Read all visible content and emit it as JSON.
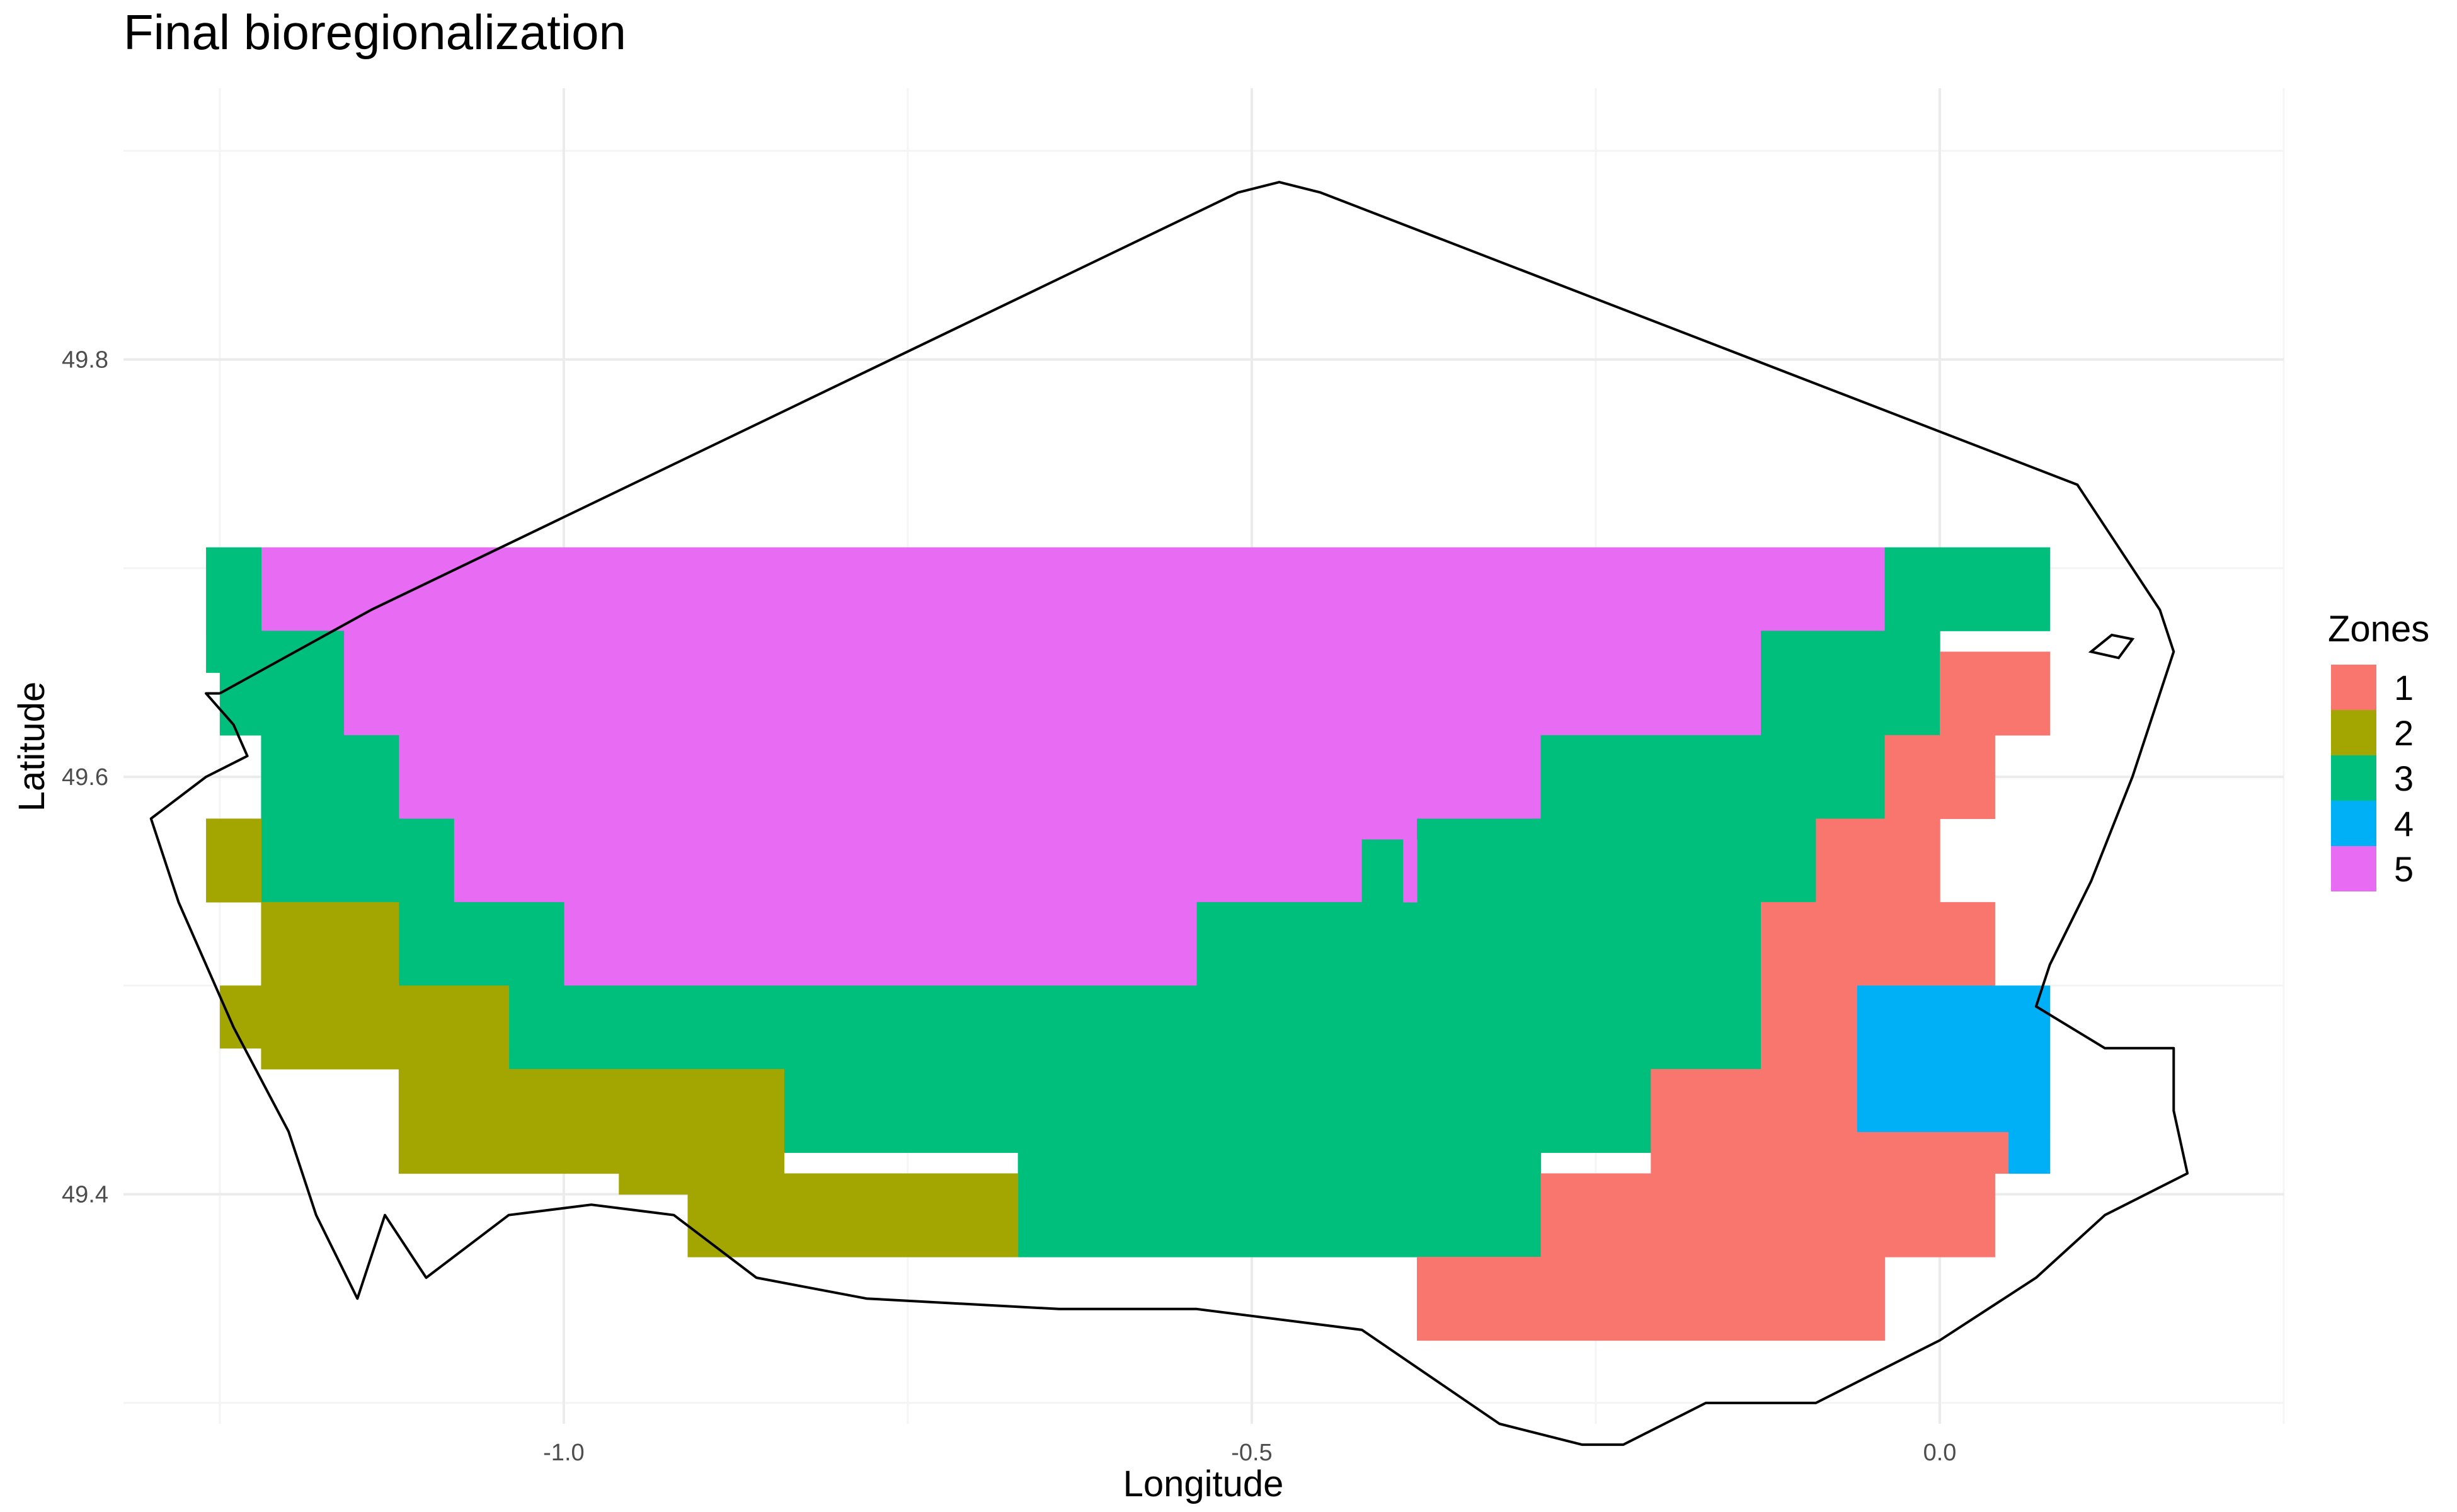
{
  "chart_data": {
    "type": "heatmap",
    "title": "Final bioregionalization",
    "xlabel": "Longitude",
    "ylabel": "Latitude",
    "xlim": [
      -1.32,
      0.25
    ],
    "ylim": [
      49.29,
      49.93
    ],
    "x_ticks": [
      -1.0,
      -0.5,
      0.0
    ],
    "x_tick_labels": [
      "-1.0",
      "-0.5",
      "0.0"
    ],
    "y_ticks": [
      49.4,
      49.6,
      49.8
    ],
    "y_tick_labels": [
      "49.4",
      "49.6",
      "49.8"
    ],
    "grid": true,
    "legend_position": "right",
    "legend": {
      "title": "Zones",
      "entries": [
        {
          "label": "1",
          "color": "#F8766D"
        },
        {
          "label": "2",
          "color": "#A3A500"
        },
        {
          "label": "3",
          "color": "#00BF7D"
        },
        {
          "label": "4",
          "color": "#00B0F6"
        },
        {
          "label": "5",
          "color": "#E76BF3"
        }
      ]
    },
    "cells": [
      {
        "zone": 5,
        "x0": -1.22,
        "x1": -0.04,
        "y0": 49.67,
        "y1": 49.71
      },
      {
        "zone": 5,
        "x0": -1.16,
        "x1": -0.13,
        "y0": 49.62,
        "y1": 49.67
      },
      {
        "zone": 5,
        "x0": -1.12,
        "x1": -0.29,
        "y0": 49.58,
        "y1": 49.62
      },
      {
        "zone": 5,
        "x0": -1.08,
        "x1": -0.38,
        "y0": 49.54,
        "y1": 49.58
      },
      {
        "zone": 5,
        "x0": -1.0,
        "x1": -0.54,
        "y0": 49.5,
        "y1": 49.54
      },
      {
        "zone": 3,
        "x0": -1.26,
        "x1": -1.22,
        "y0": 49.67,
        "y1": 49.71
      },
      {
        "zone": 3,
        "x0": -1.26,
        "x1": -1.16,
        "y0": 49.65,
        "y1": 49.67
      },
      {
        "zone": 3,
        "x0": -1.25,
        "x1": -1.16,
        "y0": 49.62,
        "y1": 49.65
      },
      {
        "zone": 3,
        "x0": -1.22,
        "x1": -1.12,
        "y0": 49.58,
        "y1": 49.62
      },
      {
        "zone": 3,
        "x0": -1.22,
        "x1": -1.08,
        "y0": 49.54,
        "y1": 49.58
      },
      {
        "zone": 3,
        "x0": -1.12,
        "x1": -1.0,
        "y0": 49.5,
        "y1": 49.54
      },
      {
        "zone": 3,
        "x0": -1.04,
        "x1": -0.13,
        "y0": 49.46,
        "y1": 49.5
      },
      {
        "zone": 3,
        "x0": -0.84,
        "x1": -0.21,
        "y0": 49.42,
        "y1": 49.46
      },
      {
        "zone": 3,
        "x0": -0.67,
        "x1": -0.29,
        "y0": 49.37,
        "y1": 49.42
      },
      {
        "zone": 3,
        "x0": -0.54,
        "x1": -0.13,
        "y0": 49.5,
        "y1": 49.54
      },
      {
        "zone": 3,
        "x0": -0.38,
        "x1": -0.09,
        "y0": 49.54,
        "y1": 49.58
      },
      {
        "zone": 3,
        "x0": -0.29,
        "x1": -0.04,
        "y0": 49.58,
        "y1": 49.62
      },
      {
        "zone": 3,
        "x0": -0.13,
        "x1": 0.0,
        "y0": 49.62,
        "y1": 49.67
      },
      {
        "zone": 3,
        "x0": -0.04,
        "x1": 0.08,
        "y0": 49.67,
        "y1": 49.71
      },
      {
        "zone": 3,
        "x0": -0.42,
        "x1": -0.39,
        "y0": 49.54,
        "y1": 49.57
      },
      {
        "zone": 5,
        "x0": -0.39,
        "x1": -0.38,
        "y0": 49.54,
        "y1": 49.57
      },
      {
        "zone": 2,
        "x0": -1.26,
        "x1": -1.22,
        "y0": 49.54,
        "y1": 49.58
      },
      {
        "zone": 2,
        "x0": -1.22,
        "x1": -1.12,
        "y0": 49.5,
        "y1": 49.54
      },
      {
        "zone": 2,
        "x0": -1.25,
        "x1": -1.04,
        "y0": 49.47,
        "y1": 49.5
      },
      {
        "zone": 2,
        "x0": -1.22,
        "x1": -1.04,
        "y0": 49.46,
        "y1": 49.47
      },
      {
        "zone": 2,
        "x0": -1.12,
        "x1": -0.84,
        "y0": 49.41,
        "y1": 49.46
      },
      {
        "zone": 2,
        "x0": -0.96,
        "x1": -0.67,
        "y0": 49.4,
        "y1": 49.41
      },
      {
        "zone": 2,
        "x0": -0.91,
        "x1": -0.67,
        "y0": 49.37,
        "y1": 49.4
      },
      {
        "zone": 1,
        "x0": 0.0,
        "x1": 0.08,
        "y0": 49.62,
        "y1": 49.66
      },
      {
        "zone": 1,
        "x0": -0.04,
        "x1": 0.04,
        "y0": 49.58,
        "y1": 49.62
      },
      {
        "zone": 1,
        "x0": -0.09,
        "x1": 0.0,
        "y0": 49.54,
        "y1": 49.58
      },
      {
        "zone": 1,
        "x0": 0.0,
        "x1": 0.04,
        "y0": 49.5,
        "y1": 49.54
      },
      {
        "zone": 1,
        "x0": -0.13,
        "x1": 0.0,
        "y0": 49.5,
        "y1": 49.54
      },
      {
        "zone": 1,
        "x0": -0.13,
        "x1": -0.06,
        "y0": 49.46,
        "y1": 49.5
      },
      {
        "zone": 1,
        "x0": -0.21,
        "x1": -0.06,
        "y0": 49.43,
        "y1": 49.46
      },
      {
        "zone": 1,
        "x0": -0.21,
        "x1": 0.05,
        "y0": 49.41,
        "y1": 49.43
      },
      {
        "zone": 1,
        "x0": -0.29,
        "x1": 0.04,
        "y0": 49.37,
        "y1": 49.41
      },
      {
        "zone": 1,
        "x0": -0.38,
        "x1": -0.04,
        "y0": 49.33,
        "y1": 49.37
      },
      {
        "zone": 4,
        "x0": -0.06,
        "x1": 0.08,
        "y0": 49.43,
        "y1": 49.5
      },
      {
        "zone": 4,
        "x0": 0.05,
        "x1": 0.08,
        "y0": 49.41,
        "y1": 49.43
      }
    ],
    "outline": [
      [
        -1.25,
        49.64
      ],
      [
        -1.14,
        49.68
      ],
      [
        -0.51,
        49.88
      ],
      [
        -0.48,
        49.885
      ],
      [
        -0.45,
        49.88
      ],
      [
        0.1,
        49.74
      ],
      [
        0.13,
        49.71
      ],
      [
        0.16,
        49.68
      ],
      [
        0.17,
        49.66
      ],
      [
        0.14,
        49.6
      ],
      [
        0.11,
        49.55
      ],
      [
        0.08,
        49.51
      ],
      [
        0.07,
        49.49
      ],
      [
        0.12,
        49.47
      ],
      [
        0.17,
        49.47
      ],
      [
        0.17,
        49.44
      ],
      [
        0.18,
        49.41
      ],
      [
        0.12,
        49.39
      ],
      [
        0.07,
        49.36
      ],
      [
        0.0,
        49.33
      ],
      [
        -0.09,
        49.3
      ],
      [
        -0.17,
        49.3
      ],
      [
        -0.23,
        49.28
      ],
      [
        -0.26,
        49.28
      ],
      [
        -0.32,
        49.29
      ],
      [
        -0.42,
        49.335
      ],
      [
        -0.54,
        49.345
      ],
      [
        -0.64,
        49.345
      ],
      [
        -0.78,
        49.35
      ],
      [
        -0.86,
        49.36
      ],
      [
        -0.92,
        49.39
      ],
      [
        -0.98,
        49.395
      ],
      [
        -1.04,
        49.39
      ],
      [
        -1.1,
        49.36
      ],
      [
        -1.13,
        49.39
      ],
      [
        -1.15,
        49.35
      ],
      [
        -1.18,
        49.39
      ],
      [
        -1.2,
        49.43
      ],
      [
        -1.24,
        49.48
      ],
      [
        -1.28,
        49.54
      ],
      [
        -1.3,
        49.58
      ],
      [
        -1.26,
        49.6
      ],
      [
        -1.23,
        49.61
      ],
      [
        -1.24,
        49.625
      ],
      [
        -1.26,
        49.64
      ],
      [
        -1.25,
        49.64
      ]
    ],
    "small_island": [
      [
        0.11,
        49.66
      ],
      [
        0.125,
        49.668
      ],
      [
        0.14,
        49.666
      ],
      [
        0.13,
        49.657
      ]
    ]
  }
}
